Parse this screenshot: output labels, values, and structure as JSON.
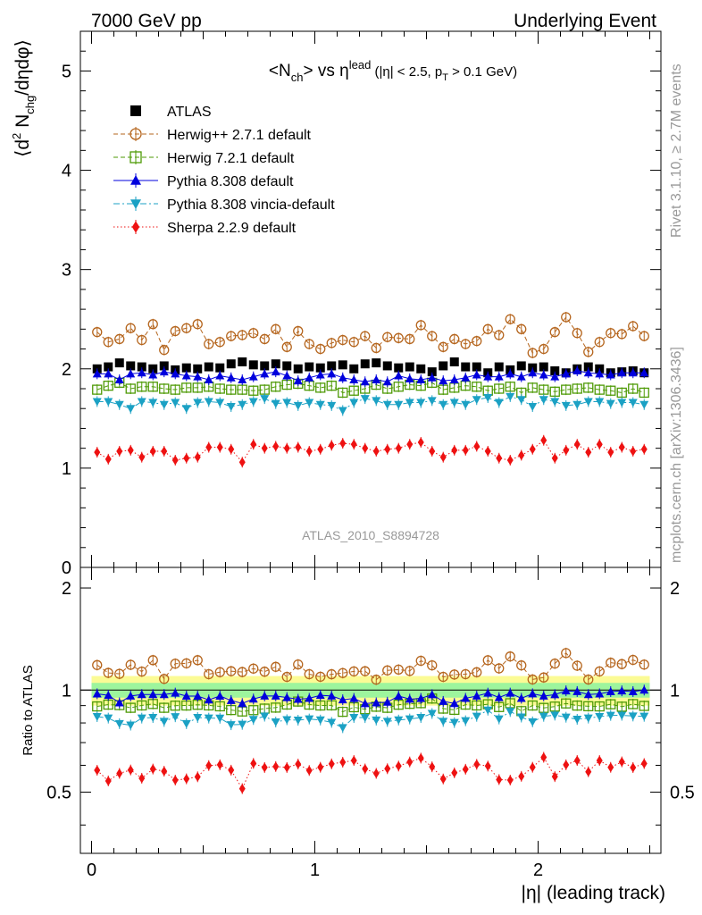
{
  "header": {
    "left": "7000 GeV pp",
    "right": "Underlying Event"
  },
  "side_labels": {
    "right_top": "Rivet 3.1.10, ≥ 2.7M events",
    "right_bottom": "mcplots.cern.ch [arXiv:1306.3436]"
  },
  "chart_data": {
    "type": "scatter",
    "title": "<Nch> vs ηlead (|η| < 2.5, pT > 0.1 GeV)",
    "title_parts": {
      "lt": "<N",
      "ch": "ch",
      "gt_vs": "> vs η",
      "lead": "lead",
      "cut_a": " (|η| < 2.5, p",
      "t": "T",
      "cut_b": " > 0.1 GeV)"
    },
    "ylabel_parts": {
      "open": "⟨d",
      "sq": "2",
      "n": " N",
      "chg": "chg",
      "rest": "/dηdφ⟩"
    },
    "xlabel": "|η| (leading track)",
    "ratio_ylabel": "Ratio to ATLAS",
    "watermark": "ATLAS_2010_S8894728",
    "xlim": [
      -0.05,
      2.55
    ],
    "ylim": [
      0,
      5.4
    ],
    "ratio_ylim": [
      0.33,
      2.3
    ],
    "x_ticks": [
      "0",
      "1",
      "2"
    ],
    "y_ticks": [
      "0",
      "1",
      "2",
      "3",
      "4",
      "5"
    ],
    "ratio_ticks": [
      "0.5",
      "1",
      "2"
    ],
    "ratio_band": {
      "inner": 0.05,
      "outer": 0.1
    },
    "x": [
      0.025,
      0.075,
      0.125,
      0.175,
      0.225,
      0.275,
      0.325,
      0.375,
      0.425,
      0.475,
      0.525,
      0.575,
      0.625,
      0.675,
      0.725,
      0.775,
      0.825,
      0.875,
      0.925,
      0.975,
      1.025,
      1.075,
      1.125,
      1.175,
      1.225,
      1.275,
      1.325,
      1.375,
      1.425,
      1.475,
      1.525,
      1.575,
      1.625,
      1.675,
      1.725,
      1.775,
      1.825,
      1.875,
      1.925,
      1.975,
      2.025,
      2.075,
      2.125,
      2.175,
      2.225,
      2.275,
      2.325,
      2.375,
      2.425,
      2.475
    ],
    "series": [
      {
        "name": "ATLAS",
        "color": "#000000",
        "marker": "square-filled",
        "line": "none",
        "values": [
          2.0,
          2.02,
          2.06,
          2.03,
          2.02,
          2.0,
          2.03,
          1.99,
          2.01,
          2.0,
          2.02,
          2.01,
          2.05,
          2.07,
          2.04,
          2.03,
          2.05,
          2.03,
          2.0,
          2.02,
          2.01,
          2.03,
          2.04,
          2.0,
          2.05,
          2.06,
          2.03,
          2.01,
          2.02,
          2.0,
          1.97,
          2.03,
          2.07,
          2.02,
          2.02,
          1.96,
          2.02,
          1.99,
          2.03,
          2.01,
          2.02,
          1.98,
          1.96,
          2.0,
          2.02,
          2.0,
          1.96,
          1.97,
          1.98,
          1.96
        ]
      },
      {
        "name": "Herwig++ 2.7.1 default",
        "color": "#b5651d",
        "marker": "circle-open",
        "line": "dashed",
        "values": [
          2.37,
          2.27,
          2.3,
          2.41,
          2.29,
          2.45,
          2.19,
          2.38,
          2.41,
          2.45,
          2.25,
          2.27,
          2.33,
          2.34,
          2.36,
          2.3,
          2.4,
          2.22,
          2.38,
          2.25,
          2.2,
          2.26,
          2.29,
          2.27,
          2.33,
          2.21,
          2.32,
          2.31,
          2.3,
          2.44,
          2.33,
          2.22,
          2.3,
          2.25,
          2.28,
          2.4,
          2.34,
          2.5,
          2.4,
          2.16,
          2.2,
          2.37,
          2.52,
          2.36,
          2.17,
          2.27,
          2.36,
          2.35,
          2.43,
          2.33
        ]
      },
      {
        "name": "Herwig 7.2.1 default",
        "color": "#4e9a06",
        "marker": "square-open",
        "line": "dashed",
        "values": [
          1.79,
          1.83,
          1.86,
          1.8,
          1.82,
          1.82,
          1.8,
          1.79,
          1.81,
          1.81,
          1.82,
          1.8,
          1.79,
          1.79,
          1.78,
          1.79,
          1.82,
          1.84,
          1.85,
          1.83,
          1.81,
          1.83,
          1.76,
          1.78,
          1.8,
          1.84,
          1.8,
          1.82,
          1.84,
          1.83,
          1.86,
          1.79,
          1.81,
          1.83,
          1.82,
          1.78,
          1.8,
          1.82,
          1.76,
          1.81,
          1.79,
          1.77,
          1.79,
          1.8,
          1.81,
          1.79,
          1.78,
          1.76,
          1.8,
          1.76
        ]
      },
      {
        "name": "Pythia 8.308 default",
        "color": "#0000dd",
        "marker": "triangle-up-filled",
        "line": "solid",
        "values": [
          1.95,
          1.95,
          1.89,
          1.95,
          1.96,
          1.94,
          1.97,
          1.95,
          1.93,
          1.92,
          1.89,
          1.93,
          1.91,
          1.89,
          1.92,
          1.95,
          1.97,
          1.93,
          1.88,
          1.91,
          1.94,
          1.95,
          1.91,
          1.89,
          1.87,
          1.89,
          1.87,
          1.93,
          1.9,
          1.89,
          1.91,
          1.88,
          1.89,
          1.91,
          1.94,
          1.92,
          1.92,
          1.95,
          1.92,
          1.96,
          1.94,
          1.92,
          1.95,
          1.98,
          1.96,
          1.95,
          1.94,
          1.96,
          1.96,
          1.96
        ]
      },
      {
        "name": "Pythia 8.308 vincia-default",
        "color": "#1ba1c4",
        "marker": "triangle-down-filled",
        "line": "dashdot",
        "values": [
          1.67,
          1.67,
          1.64,
          1.6,
          1.67,
          1.66,
          1.64,
          1.66,
          1.6,
          1.66,
          1.67,
          1.66,
          1.62,
          1.64,
          1.67,
          1.7,
          1.65,
          1.66,
          1.63,
          1.66,
          1.64,
          1.63,
          1.58,
          1.66,
          1.7,
          1.68,
          1.64,
          1.64,
          1.66,
          1.66,
          1.68,
          1.64,
          1.66,
          1.64,
          1.69,
          1.71,
          1.66,
          1.72,
          1.69,
          1.62,
          1.69,
          1.67,
          1.63,
          1.64,
          1.67,
          1.67,
          1.65,
          1.66,
          1.66,
          1.64
        ]
      },
      {
        "name": "Sherpa 2.2.9 default",
        "color": "#ee1111",
        "marker": "diamond-filled",
        "line": "dotted",
        "values": [
          1.16,
          1.09,
          1.17,
          1.18,
          1.11,
          1.17,
          1.17,
          1.08,
          1.1,
          1.11,
          1.21,
          1.21,
          1.19,
          1.06,
          1.24,
          1.2,
          1.22,
          1.2,
          1.21,
          1.17,
          1.19,
          1.23,
          1.25,
          1.24,
          1.2,
          1.17,
          1.19,
          1.2,
          1.24,
          1.26,
          1.17,
          1.11,
          1.18,
          1.18,
          1.22,
          1.17,
          1.1,
          1.08,
          1.13,
          1.19,
          1.28,
          1.1,
          1.18,
          1.24,
          1.16,
          1.24,
          1.16,
          1.21,
          1.17,
          1.19
        ]
      }
    ]
  }
}
